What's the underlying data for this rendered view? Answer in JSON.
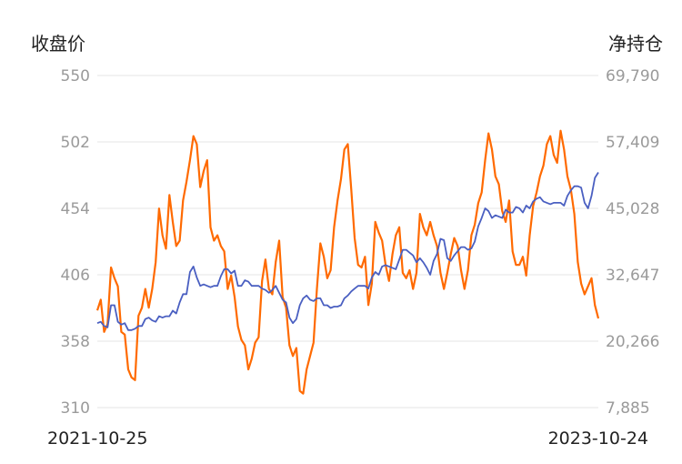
{
  "chart_data": {
    "type": "line",
    "title": "",
    "y_left_label": "收盘价",
    "y_right_label": "净持仓",
    "x_start_label": "2021-10-25",
    "x_end_label": "2023-10-24",
    "y_left_ticks": [
      "550",
      "502",
      "454",
      "406",
      "358",
      "310"
    ],
    "y_right_ticks": [
      "69,790",
      "57,409",
      "45,028",
      "32,647",
      "20,266",
      "7,885"
    ],
    "y_left_range": [
      310,
      550
    ],
    "y_right_range": [
      7885,
      69790
    ],
    "grid": true,
    "colors": {
      "close_price": "#4a5fc1",
      "net_position": "#ff6a00"
    },
    "series": [
      {
        "key": "close_price",
        "axis": "left",
        "values": [
          371,
          372,
          369,
          368,
          384,
          384,
          372,
          370,
          371,
          366,
          366,
          367,
          369,
          369,
          374,
          375,
          373,
          372,
          376,
          375,
          376,
          376,
          380,
          378,
          386,
          392,
          392,
          408,
          412,
          404,
          398,
          399,
          398,
          397,
          398,
          398,
          405,
          410,
          410,
          407,
          409,
          398,
          398,
          402,
          401,
          398,
          398,
          398,
          396,
          395,
          393,
          395,
          398,
          393,
          388,
          386,
          375,
          371,
          374,
          384,
          389,
          391,
          388,
          387,
          389,
          389,
          384,
          384,
          382,
          383,
          383,
          384,
          389,
          391,
          394,
          396,
          398,
          398,
          398,
          396,
          404,
          408,
          406,
          412,
          413,
          412,
          411,
          410,
          417,
          424,
          424,
          422,
          420,
          415,
          418,
          415,
          411,
          406,
          416,
          421,
          432,
          431,
          418,
          416,
          420,
          423,
          426,
          426,
          424,
          425,
          430,
          441,
          447,
          454,
          452,
          447,
          449,
          448,
          447,
          453,
          451,
          451,
          455,
          454,
          451,
          456,
          454,
          459,
          461,
          462,
          459,
          458,
          457,
          458,
          458,
          458,
          456,
          463,
          467,
          470,
          470,
          469,
          458,
          454,
          463,
          476,
          480
        ]
      },
      {
        "key": "net_position",
        "axis": "right",
        "values": [
          26000,
          28000,
          22000,
          23500,
          34000,
          32000,
          30500,
          22000,
          21500,
          15000,
          13500,
          13000,
          25000,
          26500,
          30000,
          26500,
          30000,
          35000,
          45000,
          40000,
          37500,
          47500,
          42500,
          38000,
          39000,
          46500,
          50000,
          54000,
          58500,
          57000,
          49000,
          52000,
          54000,
          41500,
          39000,
          40000,
          38000,
          37000,
          30000,
          32500,
          28500,
          23000,
          20500,
          19500,
          15000,
          17000,
          20000,
          21000,
          31500,
          35500,
          30000,
          29000,
          35000,
          39000,
          28500,
          26500,
          19500,
          17500,
          19000,
          11000,
          10500,
          15000,
          17500,
          20000,
          30000,
          38500,
          36000,
          32000,
          33500,
          41500,
          46500,
          50500,
          56000,
          57000,
          48500,
          39500,
          34500,
          34000,
          36000,
          27000,
          31000,
          42500,
          40500,
          39000,
          34500,
          31500,
          36500,
          40000,
          41500,
          33000,
          32000,
          33500,
          30000,
          33000,
          44000,
          41500,
          40000,
          42500,
          40000,
          38000,
          33000,
          30000,
          33000,
          36500,
          39500,
          38000,
          33500,
          30000,
          33500,
          40000,
          42000,
          46000,
          48000,
          54000,
          59000,
          56000,
          51000,
          49500,
          44500,
          42500,
          46500,
          37000,
          34500,
          34500,
          36000,
          32500,
          40000,
          45500,
          48000,
          51000,
          53000,
          57000,
          58500,
          55000,
          53500,
          59500,
          56000,
          51000,
          48500,
          44000,
          35000,
          31000,
          29000,
          30500,
          32000,
          27000,
          24500
        ]
      }
    ]
  }
}
